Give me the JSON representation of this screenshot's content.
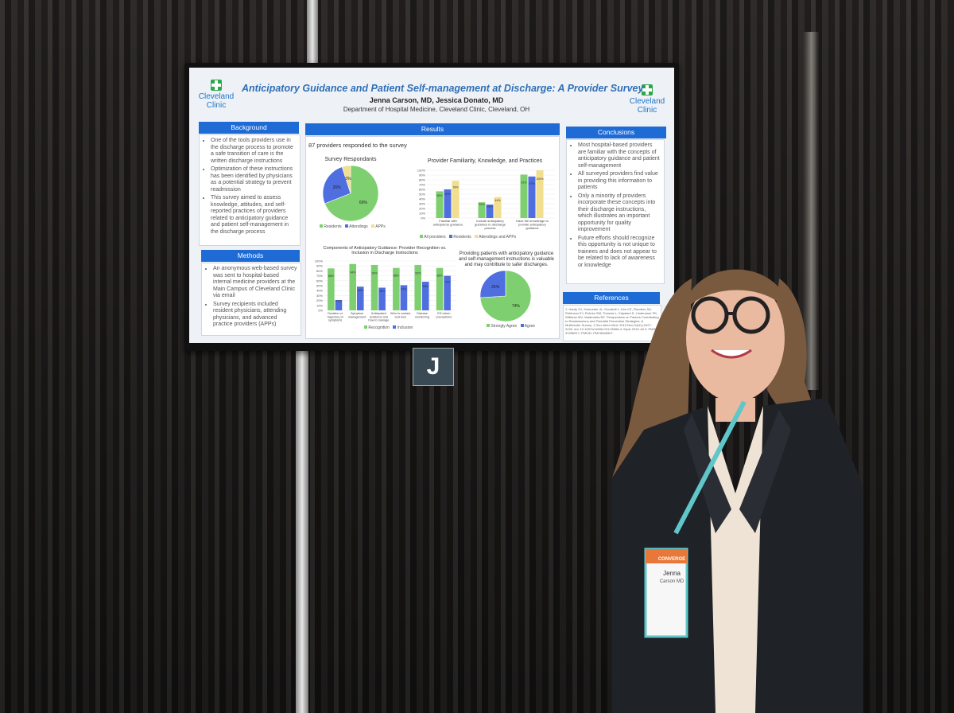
{
  "poster": {
    "title": "Anticipatory Guidance and Patient Self-management at Discharge: A Provider Survey",
    "authors": "Jenna Carson, MD, Jessica Donato, MD",
    "department": "Department of Hospital Medicine, Cleveland Clinic, Cleveland, OH",
    "logo_left": [
      "Cleveland",
      "Clinic"
    ],
    "logo_right": [
      "Cleveland",
      "Clinic"
    ],
    "background": {
      "header": "Background",
      "bullets": [
        "One of the tools providers use in the discharge process to promote a safe transition of care is the written discharge instructions",
        "Optimization of these instructions has been identified by physicians as a potential strategy to prevent readmission",
        "This survey aimed to assess knowledge, attitudes, and self-reported practices of providers related to anticipatory guidance and patient self-management in the discharge process"
      ]
    },
    "methods": {
      "header": "Methods",
      "bullets": [
        "An anonymous web-based survey was sent to hospital-based internal medicine providers at the Main Campus of Cleveland Clinic via email",
        "Survey recipients included resident physicians, attending physicians, and advanced practice providers (APPs)"
      ]
    },
    "results": {
      "header": "Results",
      "intro": "87 providers responded to the survey"
    },
    "conclusions": {
      "header": "Conclusions",
      "bullets": [
        "Most hospital-based providers are familiar with the concepts of anticipatory guidance and patient self-management",
        "All surveyed providers find value in providing this information to patients",
        "Only a minority of providers incorporate these concepts into their discharge instructions, which illustrates an important opportunity for quality improvement",
        "Future efforts should recognize this opportunity is not unique to trainees and does not appear to be related to lack of awareness or knowledge"
      ]
    },
    "references": {
      "header": "References",
      "text": "1. Hardy SJ, Schroeder JL, Goodwill L, Kim CE, Flanders SA, Robinson EJ, Rohrke SM, Thomas L, Kripalani S, Lindenauer PK, Williams MV, Vasilevskis EE. Perspectives on Factors Contributing to Readmissions and Potential Prevention Strategies: A Multicenter Survey. J Gen Intern Med. 2019 Nov;34(11):2427-2433. doi: 10.1007/s11606-019-05366-4. Epub 2019 Jul 9. PMID: 31286917; PMCID: PMC6848307."
    }
  },
  "chart_data": [
    {
      "type": "pie",
      "title": "Survey Respondants",
      "categories": [
        "Residents",
        "Attendings",
        "APPs"
      ],
      "values": [
        69,
        26,
        5
      ],
      "colors": [
        "#7ecf6f",
        "#4f6ee0",
        "#f1de8e"
      ]
    },
    {
      "type": "bar",
      "title": "Provider Familiarity, Knowledge, and Practices",
      "categories": [
        "Familiar with anticipatory guidance",
        "Include anticipatory guidance in discharge process",
        "Have the knowledge to provide anticipatory guidance"
      ],
      "series": [
        {
          "name": "All providers",
          "values": [
            56,
            33,
            91
          ]
        },
        {
          "name": "Residents",
          "values": [
            60,
            28,
            87
          ]
        },
        {
          "name": "Attendings and APPs",
          "values": [
            78,
            44,
            100
          ]
        }
      ],
      "yticks": [
        "0%",
        "10%",
        "20%",
        "30%",
        "40%",
        "50%",
        "60%",
        "70%",
        "80%",
        "90%",
        "100%"
      ],
      "ylim": [
        0,
        100
      ]
    },
    {
      "type": "bar",
      "title": "Components of Anticipatory Guidance: Provider Recognition vs. Inclusion in Discharge Instructions",
      "categories": [
        "Duration or trajectory of symptoms",
        "Symptom management",
        "Anticipated problems and how to manage",
        "Who to contact and how",
        "Disease monitoring",
        "ED return precautions"
      ],
      "series": [
        {
          "name": "Recognition",
          "values": [
            85,
            94,
            92,
            86,
            92,
            86
          ]
        },
        {
          "name": "Inclusion",
          "values": [
            21,
            48,
            46,
            51,
            58,
            70
          ]
        }
      ],
      "yticks": [
        "0%",
        "10%",
        "20%",
        "30%",
        "40%",
        "50%",
        "60%",
        "70%",
        "80%",
        "90%",
        "100%"
      ],
      "ylim": [
        0,
        100
      ]
    },
    {
      "type": "pie",
      "title": "Providing patients with anticipatory guidance and self-management instructions is valuable and may contribute to safer discharges.",
      "categories": [
        "Strongly Agree",
        "Agree"
      ],
      "values": [
        74,
        26
      ],
      "colors": [
        "#7ecf6f",
        "#4f6ee0"
      ]
    }
  ],
  "scene": {
    "stand_letter": "J",
    "badge_name": "Jenna",
    "badge_detail": "Carson MD",
    "lanyard_text": "CONVERGE"
  },
  "colors": {
    "header_blue": "#1e6bd6",
    "title_blue": "#2f6fb6",
    "green": "#7ecf6f",
    "blue": "#4f6ee0",
    "yellow": "#f1de8e"
  }
}
